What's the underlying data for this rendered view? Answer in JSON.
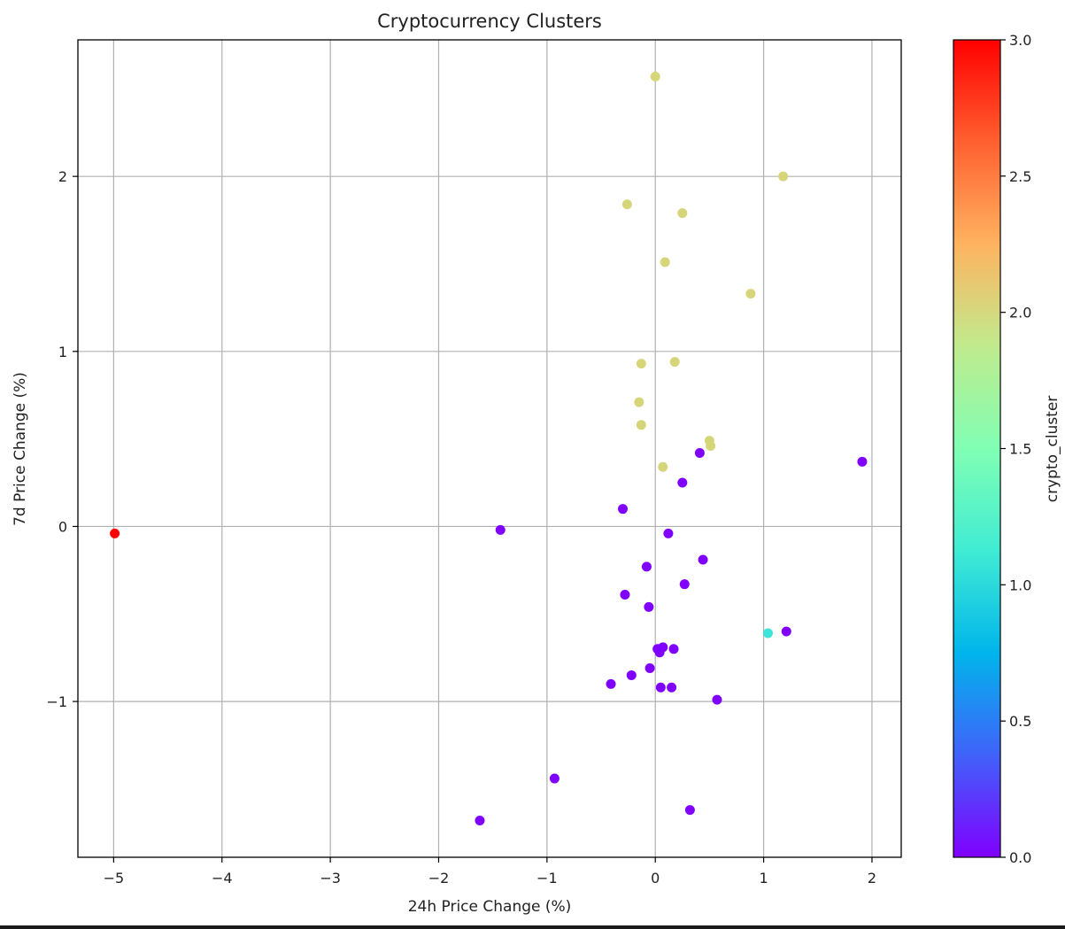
{
  "chart_data": {
    "type": "scatter",
    "title": "Cryptocurrency Clusters",
    "xlabel": "24h Price Change (%)",
    "ylabel": "7d Price Change (%)",
    "xlim": [
      -5.33,
      2.27
    ],
    "ylim": [
      -1.89,
      2.78
    ],
    "xticks": [
      -5,
      -4,
      -3,
      -2,
      -1,
      0,
      1,
      2
    ],
    "xtick_labels": [
      "−5",
      "−4",
      "−3",
      "−2",
      "−1",
      "0",
      "1",
      "2"
    ],
    "yticks": [
      -1,
      0,
      1,
      2
    ],
    "ytick_labels": [
      "−1",
      "0",
      "1",
      "2"
    ],
    "grid": true,
    "colorbar": {
      "label": "crypto_cluster",
      "range": [
        0.0,
        3.0
      ],
      "ticks": [
        0.0,
        0.5,
        1.0,
        1.5,
        2.0,
        2.5,
        3.0
      ],
      "tick_labels": [
        "0.0",
        "0.5",
        "1.0",
        "1.5",
        "2.0",
        "2.5",
        "3.0"
      ],
      "colormap": "rainbow"
    },
    "cluster_colors": {
      "0": "#8000ff",
      "1": "#3ee3da",
      "2": "#d6d57a",
      "3": "#ff0000"
    },
    "points": [
      {
        "x": 0.0,
        "y": 2.57,
        "cluster": 2
      },
      {
        "x": 1.18,
        "y": 2.0,
        "cluster": 2
      },
      {
        "x": -0.26,
        "y": 1.84,
        "cluster": 2
      },
      {
        "x": 0.25,
        "y": 1.79,
        "cluster": 2
      },
      {
        "x": 0.09,
        "y": 1.51,
        "cluster": 2
      },
      {
        "x": 0.88,
        "y": 1.33,
        "cluster": 2
      },
      {
        "x": -0.13,
        "y": 0.93,
        "cluster": 2
      },
      {
        "x": 0.18,
        "y": 0.94,
        "cluster": 2
      },
      {
        "x": -0.15,
        "y": 0.71,
        "cluster": 2
      },
      {
        "x": -0.13,
        "y": 0.58,
        "cluster": 2
      },
      {
        "x": 0.5,
        "y": 0.49,
        "cluster": 2
      },
      {
        "x": 0.51,
        "y": 0.46,
        "cluster": 2
      },
      {
        "x": 0.07,
        "y": 0.34,
        "cluster": 2
      },
      {
        "x": 0.41,
        "y": 0.42,
        "cluster": 0
      },
      {
        "x": 1.91,
        "y": 0.37,
        "cluster": 0
      },
      {
        "x": 0.25,
        "y": 0.25,
        "cluster": 0
      },
      {
        "x": -0.3,
        "y": 0.1,
        "cluster": 0
      },
      {
        "x": -1.43,
        "y": -0.02,
        "cluster": 0
      },
      {
        "x": 0.12,
        "y": -0.04,
        "cluster": 0
      },
      {
        "x": 0.44,
        "y": -0.19,
        "cluster": 0
      },
      {
        "x": -0.08,
        "y": -0.23,
        "cluster": 0
      },
      {
        "x": 0.27,
        "y": -0.33,
        "cluster": 0
      },
      {
        "x": -0.28,
        "y": -0.39,
        "cluster": 0
      },
      {
        "x": -0.06,
        "y": -0.46,
        "cluster": 0
      },
      {
        "x": 1.21,
        "y": -0.6,
        "cluster": 0
      },
      {
        "x": 0.02,
        "y": -0.7,
        "cluster": 0
      },
      {
        "x": 0.07,
        "y": -0.69,
        "cluster": 0
      },
      {
        "x": 0.04,
        "y": -0.72,
        "cluster": 0
      },
      {
        "x": 0.17,
        "y": -0.7,
        "cluster": 0
      },
      {
        "x": -0.05,
        "y": -0.81,
        "cluster": 0
      },
      {
        "x": -0.22,
        "y": -0.85,
        "cluster": 0
      },
      {
        "x": -0.41,
        "y": -0.9,
        "cluster": 0
      },
      {
        "x": 0.05,
        "y": -0.92,
        "cluster": 0
      },
      {
        "x": 0.15,
        "y": -0.92,
        "cluster": 0
      },
      {
        "x": 0.57,
        "y": -0.99,
        "cluster": 0
      },
      {
        "x": -0.93,
        "y": -1.44,
        "cluster": 0
      },
      {
        "x": 0.32,
        "y": -1.62,
        "cluster": 0
      },
      {
        "x": -1.62,
        "y": -1.68,
        "cluster": 0
      },
      {
        "x": 1.04,
        "y": -0.61,
        "cluster": 1
      },
      {
        "x": -4.99,
        "y": -0.04,
        "cluster": 3
      }
    ]
  }
}
